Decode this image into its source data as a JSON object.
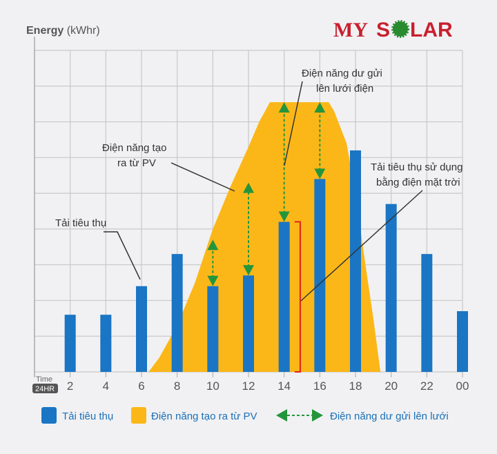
{
  "chart_data": {
    "type": "bar",
    "ylabel": "Energy",
    "yunit": "(kWhr)",
    "xlabel": "Time",
    "xlabel_badge": "24HR",
    "categories": [
      "2",
      "4",
      "6",
      "8",
      "10",
      "12",
      "14",
      "16",
      "18",
      "20",
      "22",
      "00"
    ],
    "hours": [
      2,
      4,
      6,
      8,
      10,
      12,
      14,
      16,
      18,
      20,
      22,
      24
    ],
    "ylim": [
      0,
      9
    ],
    "xlim": [
      0,
      24
    ],
    "grid": true,
    "legend_placement": "bottom",
    "series": [
      {
        "name": "Tải tiêu thụ",
        "type": "bar",
        "color": "#1a75c4",
        "values": [
          1.6,
          1.6,
          2.4,
          3.3,
          2.4,
          2.7,
          4.2,
          5.4,
          6.2,
          4.7,
          3.3,
          1.7
        ]
      },
      {
        "name": "Điện năng tạo ra từ PV",
        "type": "area",
        "color": "#fbb718",
        "points": [
          [
            6.4,
            0
          ],
          [
            7,
            0.4
          ],
          [
            8,
            1.3
          ],
          [
            9,
            2.5
          ],
          [
            10,
            4.0
          ],
          [
            11,
            5.2
          ],
          [
            12,
            6.3
          ],
          [
            12.6,
            7.0
          ],
          [
            13.2,
            7.55
          ],
          [
            16.5,
            7.55
          ],
          [
            16.8,
            7.3
          ],
          [
            17.5,
            6.4
          ],
          [
            18,
            5.0
          ],
          [
            18.5,
            3.2
          ],
          [
            19,
            1.5
          ],
          [
            19.4,
            0
          ]
        ]
      },
      {
        "name": "Điện năng dư gửi lên lưới",
        "type": "arrow",
        "color": "#23953c",
        "arrows": [
          [
            10,
            2.4,
            3.7
          ],
          [
            12,
            2.7,
            5.3
          ],
          [
            14,
            4.2,
            7.55
          ],
          [
            16,
            5.4,
            7.55
          ]
        ]
      }
    ],
    "bracket": {
      "hour": 14.9,
      "from": 0,
      "to": 4.2,
      "color": "#e02020"
    },
    "annotations": [
      {
        "text": [
          "Tải tiêu thụ"
        ]
      },
      {
        "text": [
          "Điện năng tạo",
          "ra từ PV"
        ]
      },
      {
        "text": [
          "Điện năng dư gửi",
          "lên lưới điện"
        ]
      },
      {
        "text": [
          "Tải tiêu thụ sử dụng",
          "bằng điện mặt trời"
        ]
      }
    ]
  },
  "logo": {
    "text": "MY SOLAR",
    "color": "#c8202f",
    "sun_color": "#2a8a2f"
  }
}
